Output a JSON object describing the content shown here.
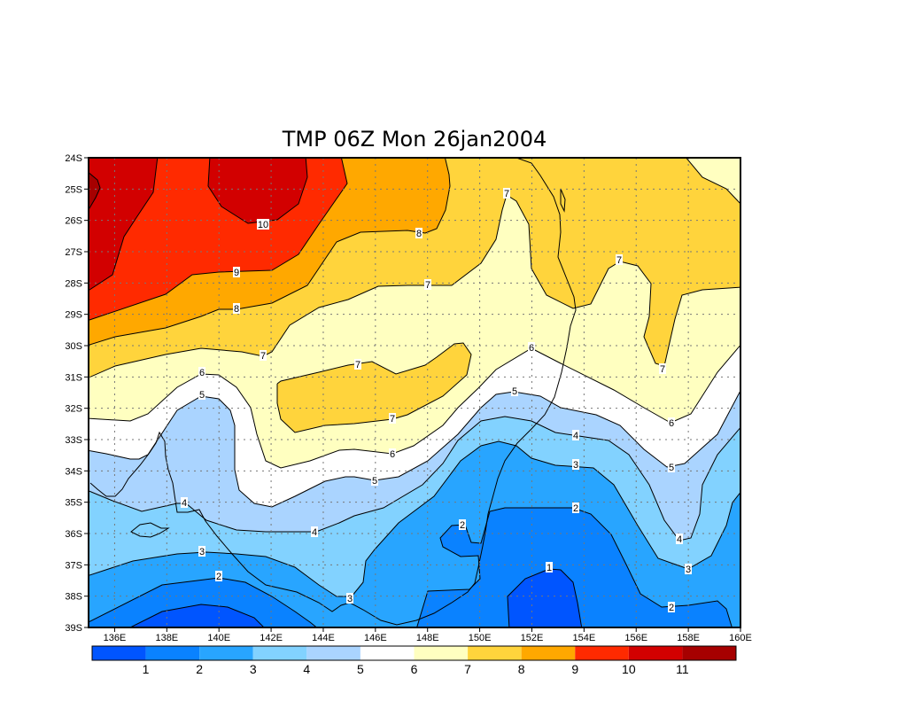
{
  "chart_data": {
    "type": "heatmap",
    "subtype": "filled-contour map",
    "title": "TMP 06Z Mon 26jan2004",
    "variable": "TMP",
    "x_ticks": [
      "136E",
      "138E",
      "140E",
      "142E",
      "144E",
      "146E",
      "148E",
      "150E",
      "152E",
      "154E",
      "156E",
      "158E",
      "160E"
    ],
    "y_ticks": [
      "24S",
      "25S",
      "26S",
      "27S",
      "28S",
      "29S",
      "30S",
      "31S",
      "32S",
      "33S",
      "34S",
      "35S",
      "36S",
      "37S",
      "38S",
      "39S"
    ],
    "xlim_lon": [
      135,
      160
    ],
    "ylim_lat": [
      -39,
      -24
    ],
    "grid": true,
    "contour_levels": [
      1,
      2,
      3,
      4,
      5,
      6,
      7,
      8,
      9,
      10,
      11
    ],
    "colorbar_labels": [
      "1",
      "2",
      "3",
      "4",
      "5",
      "6",
      "7",
      "8",
      "9",
      "10",
      "11"
    ],
    "colorbar_colors": [
      "#0055ff",
      "#0a82ff",
      "#28a5ff",
      "#82d2ff",
      "#aad4ff",
      "#ffffff",
      "#ffffc0",
      "#ffd43c",
      "#ffa800",
      "#ff2a00",
      "#d20000",
      "#a60000"
    ],
    "colorbar_placement": "bottom",
    "contour_labels": [
      "10",
      "9",
      "8",
      "8",
      "7",
      "7",
      "7",
      "7",
      "7",
      "7",
      "7",
      "6",
      "6",
      "6",
      "6",
      "5",
      "5",
      "5",
      "5",
      "4",
      "4",
      "4",
      "4",
      "3",
      "3",
      "3",
      "3",
      "2",
      "2",
      "2",
      "2",
      "1"
    ],
    "field_summary": "values decrease from >11 in the north-west (24S 135E) to <1 in the south (38-39S near 140E and 152-153E)"
  }
}
